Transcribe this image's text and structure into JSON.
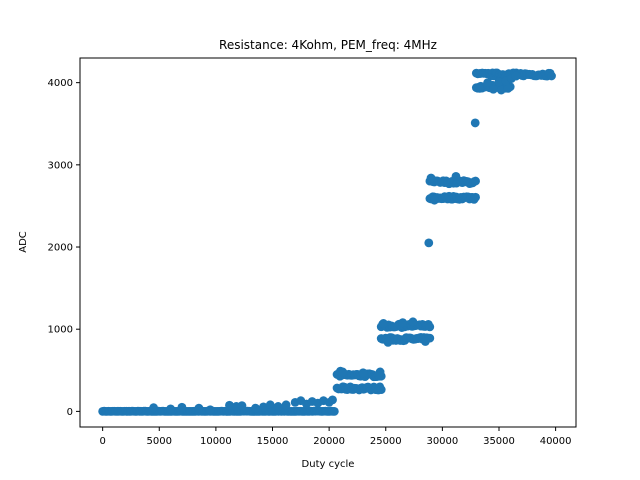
{
  "chart_data": {
    "type": "scatter",
    "title": "Resistance: 4Kohm, PEM_freq: 4MHz",
    "xlabel": "Duty cycle",
    "ylabel": "ADC",
    "xlim": [
      -2000,
      41800
    ],
    "ylim": [
      -190,
      4300
    ],
    "xticks": [
      0,
      5000,
      10000,
      15000,
      20000,
      25000,
      30000,
      35000,
      40000
    ],
    "yticks": [
      0,
      1000,
      2000,
      3000,
      4000
    ],
    "grid": false,
    "legend": "none",
    "color": "#1f77b4",
    "segments": [
      {
        "x_start": 0,
        "x_end": 11000,
        "levels": [
          0
        ],
        "extras": [
          [
            4500,
            45
          ],
          [
            6000,
            30
          ],
          [
            7000,
            50
          ],
          [
            8500,
            40
          ],
          [
            9500,
            20
          ]
        ]
      },
      {
        "x_start": 11000,
        "x_end": 15000,
        "levels": [
          0
        ],
        "extras": [
          [
            11200,
            75
          ],
          [
            11800,
            60
          ],
          [
            12300,
            70
          ],
          [
            13500,
            40
          ],
          [
            14200,
            55
          ],
          [
            14800,
            80
          ]
        ]
      },
      {
        "x_start": 15000,
        "x_end": 20500,
        "levels": [
          0
        ],
        "extras": [
          [
            15500,
            60
          ],
          [
            16200,
            80
          ],
          [
            17000,
            110
          ],
          [
            17500,
            130
          ],
          [
            18000,
            90
          ],
          [
            18500,
            120
          ],
          [
            19000,
            100
          ],
          [
            19500,
            130
          ],
          [
            20000,
            110
          ],
          [
            20300,
            140
          ]
        ]
      },
      {
        "x_start": 20700,
        "x_end": 24700,
        "levels": [
          280,
          440
        ],
        "extras": [
          [
            21000,
            490
          ],
          [
            21200,
            480
          ],
          [
            23000,
            470
          ],
          [
            24500,
            480
          ]
        ]
      },
      {
        "x_start": 24600,
        "x_end": 28900,
        "levels": [
          880,
          1040
        ],
        "extras": [
          [
            24800,
            1070
          ],
          [
            25200,
            840
          ],
          [
            26500,
            1080
          ],
          [
            27400,
            1090
          ],
          [
            28500,
            850
          ]
        ]
      },
      {
        "x_start": 28900,
        "x_end": 33000,
        "levels": [
          2600,
          2790
        ],
        "extras": [
          [
            28800,
            2050
          ],
          [
            29000,
            2840
          ],
          [
            29300,
            2570
          ],
          [
            31200,
            2860
          ],
          [
            32800,
            2580
          ]
        ]
      },
      {
        "x_start": 33000,
        "x_end": 36000,
        "levels": [
          3950,
          4100
        ],
        "extras": [
          [
            32900,
            3510
          ],
          [
            33300,
            3930
          ],
          [
            34500,
            3920
          ],
          [
            35200,
            3910
          ],
          [
            35800,
            3930
          ],
          [
            34000,
            4000
          ],
          [
            35000,
            4010
          ],
          [
            35600,
            4020
          ]
        ]
      },
      {
        "x_start": 36000,
        "x_end": 39700,
        "levels": [
          4100
        ],
        "extras": [
          [
            36100,
            4050
          ],
          [
            36500,
            4080
          ]
        ]
      }
    ]
  }
}
